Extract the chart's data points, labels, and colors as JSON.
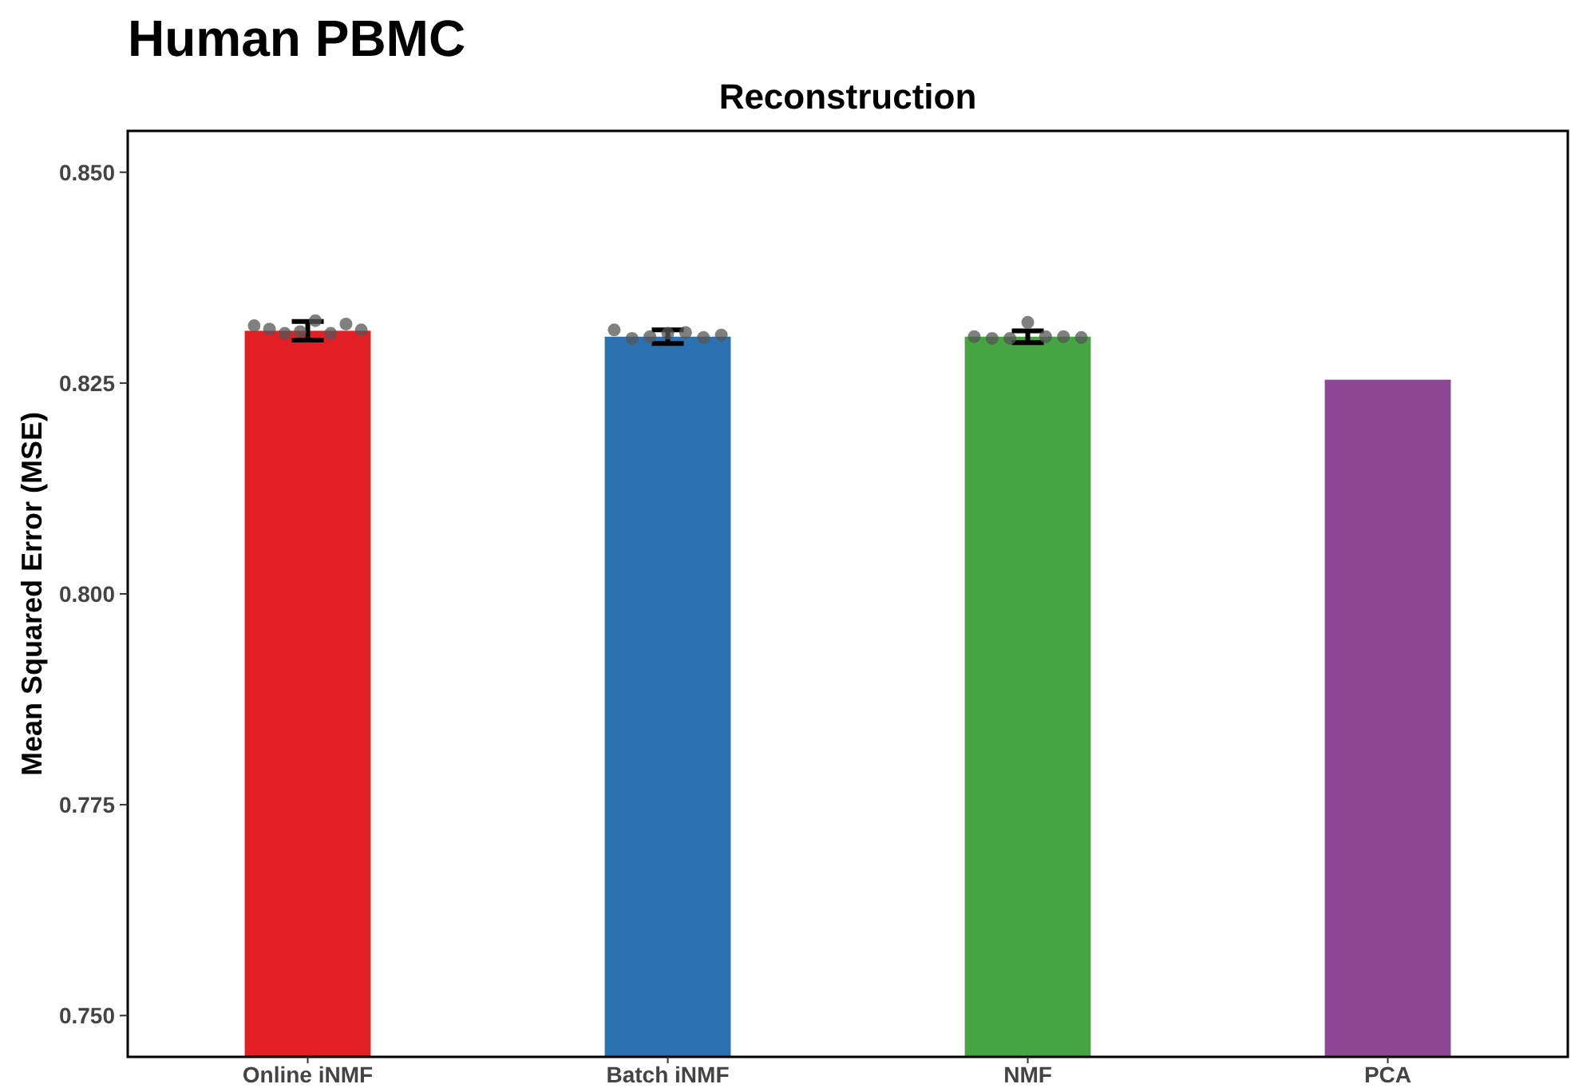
{
  "chart_data": {
    "type": "bar",
    "title": "Human PBMC",
    "subtitle": "Reconstruction",
    "ylabel": "Mean Squared Error (MSE)",
    "categories": [
      "Online iNMF",
      "Batch iNMF",
      "NMF",
      "PCA"
    ],
    "series": [
      {
        "colors": [
          "#e31f26",
          "#2d72b0",
          "#44a542",
          "#8c4894"
        ],
        "values": [
          0.8312,
          0.8305,
          0.8305,
          0.8254
        ],
        "errors": [
          0.0011,
          0.0008,
          0.0007,
          null
        ]
      },
      {
        "type": "scatter",
        "color": "#555555",
        "x": [
          "Online iNMF",
          "Online iNMF",
          "Online iNMF",
          "Online iNMF",
          "Online iNMF",
          "Online iNMF",
          "Online iNMF",
          "Online iNMF",
          "Batch iNMF",
          "Batch iNMF",
          "Batch iNMF",
          "Batch iNMF",
          "Batch iNMF",
          "Batch iNMF",
          "Batch iNMF",
          "NMF",
          "NMF",
          "NMF",
          "NMF",
          "NMF",
          "NMF",
          "NMF"
        ],
        "values": [
          0.8318,
          0.8314,
          0.8309,
          0.8311,
          0.8324,
          0.8309,
          0.832,
          0.8313,
          0.8313,
          0.8303,
          0.8305,
          0.8309,
          0.831,
          0.8304,
          0.8307,
          0.8305,
          0.8303,
          0.8303,
          0.8322,
          0.8305,
          0.8305,
          0.8304
        ]
      }
    ],
    "ylim": [
      0.7451,
      0.8549
    ],
    "yticks": [
      {
        "value": 0.75,
        "label": "0.750"
      },
      {
        "value": 0.775,
        "label": "0.775"
      },
      {
        "value": 0.8,
        "label": "0.800"
      },
      {
        "value": 0.825,
        "label": "0.825"
      },
      {
        "value": 0.85,
        "label": "0.850"
      }
    ],
    "grid": false
  }
}
